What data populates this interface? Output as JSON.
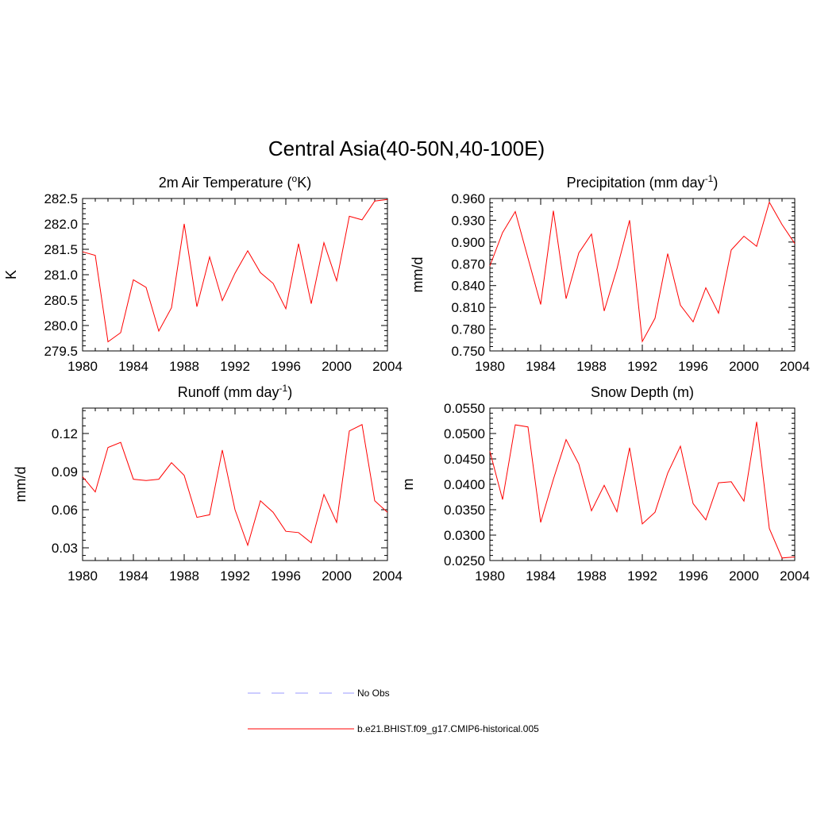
{
  "figure_title": "Central Asia(40-50N,40-100E)",
  "legend": {
    "obs_label": "No Obs",
    "obs_color": "#9999ff",
    "model_label": "b.e21.BHIST.f09_g17.CMIP6-historical.005",
    "model_color": "#ff0000"
  },
  "chart_data": [
    {
      "type": "line",
      "title_main": "2m Air Temperature (",
      "title_sup": "o",
      "title_end": "K)",
      "ylabel": "K",
      "xlabel": "",
      "xlim": [
        1980,
        2004
      ],
      "ylim": [
        279.5,
        282.5
      ],
      "xticks": [
        "1980",
        "1984",
        "1988",
        "1992",
        "1996",
        "2000",
        "2004"
      ],
      "yticks": [
        "279.5",
        "280.0",
        "280.5",
        "281.0",
        "281.5",
        "282.0",
        "282.5"
      ],
      "x": [
        1980,
        1981,
        1982,
        1983,
        1984,
        1985,
        1986,
        1987,
        1988,
        1989,
        1990,
        1991,
        1992,
        1993,
        1994,
        1995,
        1996,
        1997,
        1998,
        1999,
        2000,
        2001,
        2002,
        2003,
        2004
      ],
      "series": [
        {
          "name": "b.e21.BHIST.f09_g17.CMIP6-historical.005",
          "values": [
            281.45,
            281.38,
            279.68,
            279.86,
            280.9,
            280.75,
            279.89,
            280.35,
            282.0,
            280.37,
            281.35,
            280.49,
            281.03,
            281.47,
            281.04,
            280.83,
            280.33,
            281.61,
            280.43,
            281.63,
            280.88,
            282.15,
            282.08,
            282.45,
            282.48
          ]
        }
      ]
    },
    {
      "type": "line",
      "title_main": "Precipitation (mm day",
      "title_sup": "-1",
      "title_end": ")",
      "ylabel": "mm/d",
      "xlabel": "",
      "xlim": [
        1980,
        2004
      ],
      "ylim": [
        0.75,
        0.96
      ],
      "xticks": [
        "1980",
        "1984",
        "1988",
        "1992",
        "1996",
        "2000",
        "2004"
      ],
      "yticks": [
        "0.750",
        "0.780",
        "0.810",
        "0.840",
        "0.870",
        "0.900",
        "0.930",
        "0.960"
      ],
      "x": [
        1980,
        1981,
        1982,
        1983,
        1984,
        1985,
        1986,
        1987,
        1988,
        1989,
        1990,
        1991,
        1992,
        1993,
        1994,
        1995,
        1996,
        1997,
        1998,
        1999,
        2000,
        2001,
        2002,
        2003,
        2004
      ],
      "series": [
        {
          "name": "b.e21.BHIST.f09_g17.CMIP6-historical.005",
          "values": [
            0.867,
            0.913,
            0.942,
            0.878,
            0.814,
            0.943,
            0.822,
            0.885,
            0.911,
            0.805,
            0.863,
            0.93,
            0.763,
            0.795,
            0.884,
            0.813,
            0.79,
            0.837,
            0.802,
            0.889,
            0.908,
            0.894,
            0.955,
            0.924,
            0.898
          ]
        }
      ]
    },
    {
      "type": "line",
      "title_main": "Runoff (mm day",
      "title_sup": "-1",
      "title_end": ")",
      "ylabel": "mm/d",
      "xlabel": "",
      "xlim": [
        1980,
        2004
      ],
      "ylim": [
        0.02,
        0.14
      ],
      "xticks": [
        "1980",
        "1984",
        "1988",
        "1992",
        "1996",
        "2000",
        "2004"
      ],
      "yticks": [
        "0.03",
        "0.06",
        "0.09",
        "0.12"
      ],
      "x": [
        1980,
        1981,
        1982,
        1983,
        1984,
        1985,
        1986,
        1987,
        1988,
        1989,
        1990,
        1991,
        1992,
        1993,
        1994,
        1995,
        1996,
        1997,
        1998,
        1999,
        2000,
        2001,
        2002,
        2003,
        2004
      ],
      "series": [
        {
          "name": "b.e21.BHIST.f09_g17.CMIP6-historical.005",
          "values": [
            0.086,
            0.074,
            0.109,
            0.113,
            0.084,
            0.083,
            0.084,
            0.097,
            0.087,
            0.054,
            0.056,
            0.107,
            0.06,
            0.032,
            0.067,
            0.058,
            0.043,
            0.042,
            0.034,
            0.072,
            0.05,
            0.122,
            0.127,
            0.067,
            0.058
          ]
        }
      ]
    },
    {
      "type": "line",
      "title_main": "Snow Depth (m)",
      "title_sup": "",
      "title_end": "",
      "ylabel": "m",
      "xlabel": "",
      "xlim": [
        1980,
        2004
      ],
      "ylim": [
        0.025,
        0.055
      ],
      "xticks": [
        "1980",
        "1984",
        "1988",
        "1992",
        "1996",
        "2000",
        "2004"
      ],
      "yticks": [
        "0.0250",
        "0.0300",
        "0.0350",
        "0.0400",
        "0.0450",
        "0.0500",
        "0.0550"
      ],
      "x": [
        1980,
        1981,
        1982,
        1983,
        1984,
        1985,
        1986,
        1987,
        1988,
        1989,
        1990,
        1991,
        1992,
        1993,
        1994,
        1995,
        1996,
        1997,
        1998,
        1999,
        2000,
        2001,
        2002,
        2003,
        2004
      ],
      "series": [
        {
          "name": "b.e21.BHIST.f09_g17.CMIP6-historical.005",
          "values": [
            0.0465,
            0.037,
            0.0517,
            0.0513,
            0.0325,
            0.041,
            0.0488,
            0.044,
            0.0348,
            0.0398,
            0.0346,
            0.0472,
            0.0322,
            0.0345,
            0.0422,
            0.0475,
            0.0362,
            0.033,
            0.0403,
            0.0405,
            0.0367,
            0.0523,
            0.0313,
            0.0255,
            0.0257
          ]
        }
      ]
    }
  ]
}
